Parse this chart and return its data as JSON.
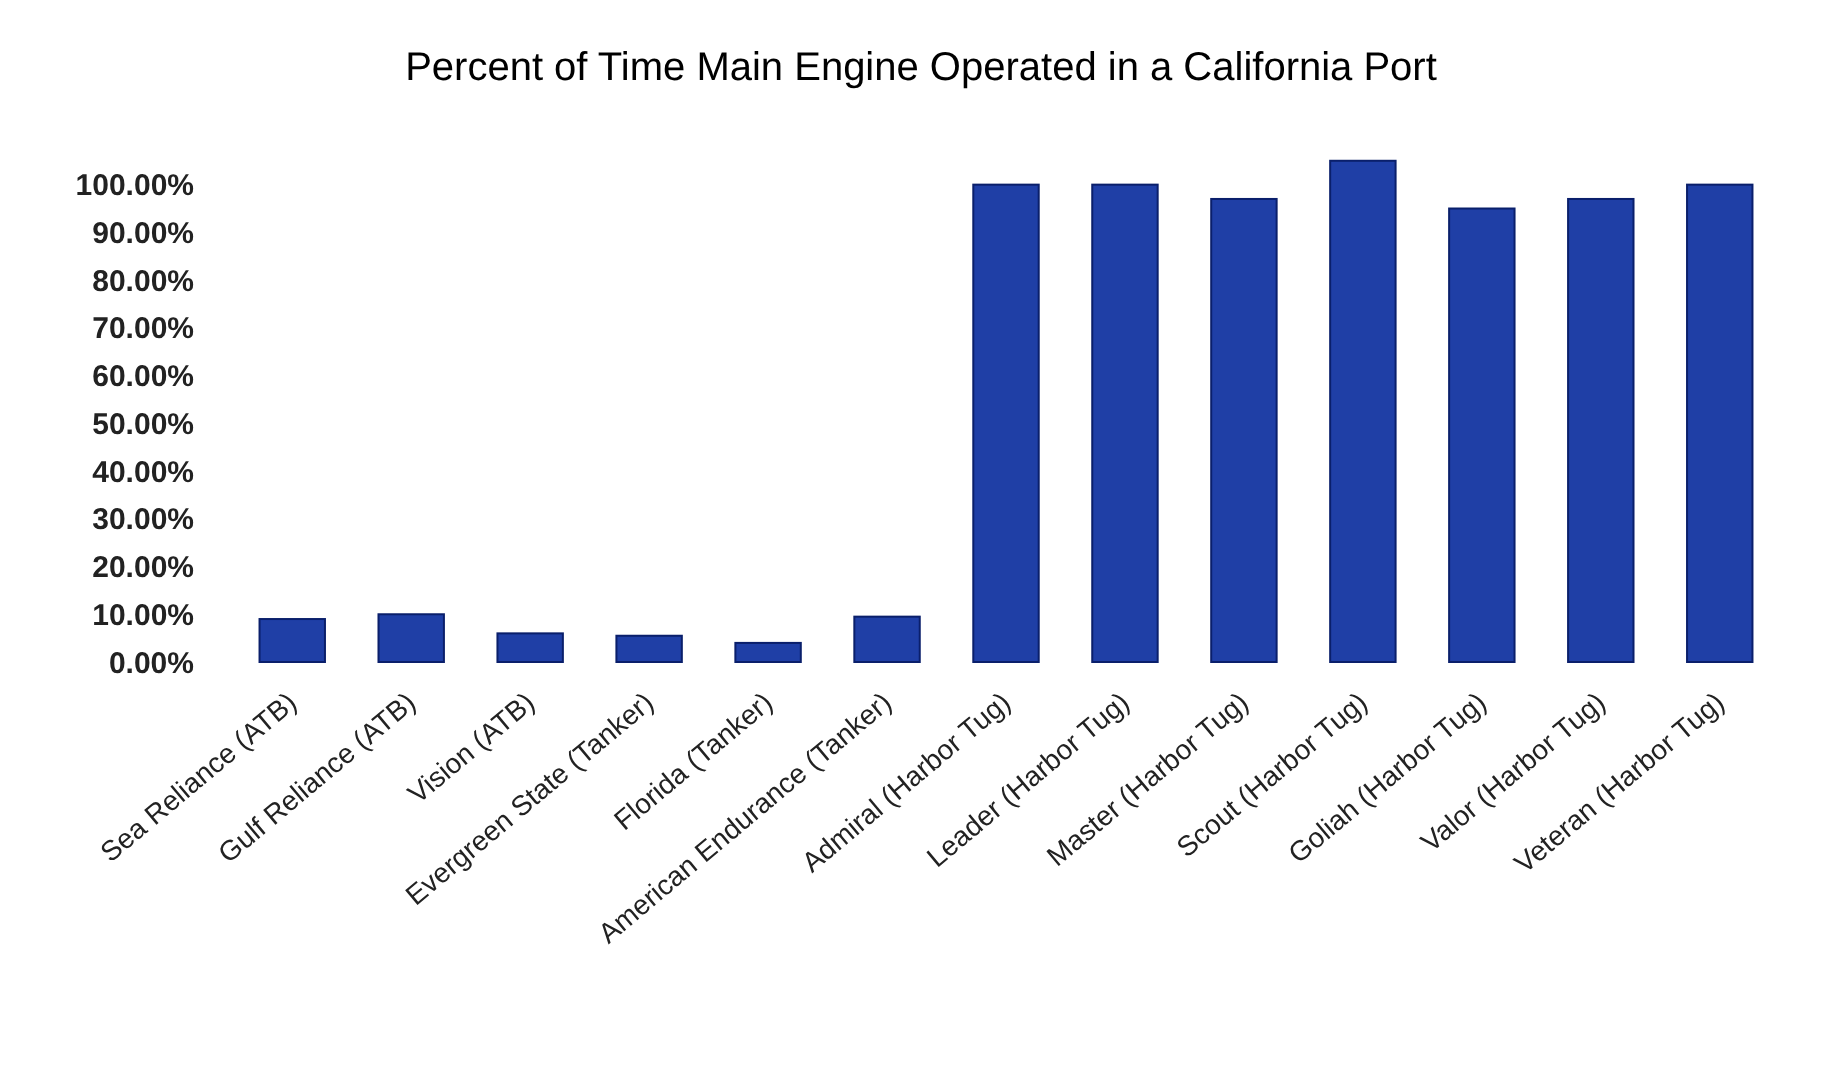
{
  "chart_data": {
    "type": "bar",
    "title": "Percent of Time Main Engine Operated in a California Port",
    "categories": [
      "Sea Reliance (ATB)",
      "Gulf Reliance (ATB)",
      "Vision (ATB)",
      "Evergreen State (Tanker)",
      "Florida (Tanker)",
      "American Endurance (Tanker)",
      "Admiral (Harbor Tug)",
      "Leader (Harbor Tug)",
      "Master (Harbor Tug)",
      "Scout (Harbor Tug)",
      "Goliah (Harbor Tug)",
      "Valor (Harbor Tug)",
      "Veteran (Harbor Tug)"
    ],
    "values": [
      9,
      10,
      6,
      5.5,
      4,
      9.5,
      100,
      100,
      97,
      105,
      95,
      97,
      100
    ],
    "color": "#1f3fa6",
    "ylim": [
      0,
      106
    ],
    "yticks": [
      {
        "value": 0,
        "label": "0.00%"
      },
      {
        "value": 10,
        "label": "10.00%"
      },
      {
        "value": 20,
        "label": "20.00%"
      },
      {
        "value": 30,
        "label": "30.00%"
      },
      {
        "value": 40,
        "label": "40.00%"
      },
      {
        "value": 50,
        "label": "50.00%"
      },
      {
        "value": 60,
        "label": "60.00%"
      },
      {
        "value": 70,
        "label": "70.00%"
      },
      {
        "value": 80,
        "label": "80.00%"
      },
      {
        "value": 90,
        "label": "90.00%"
      },
      {
        "value": 100,
        "label": "100.00%"
      }
    ]
  }
}
